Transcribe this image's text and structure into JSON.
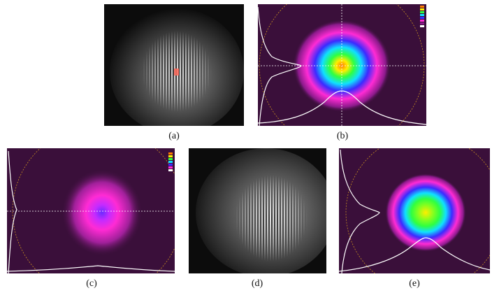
{
  "captions": {
    "a": "(a)",
    "b": "(b)",
    "c": "(c)",
    "d": "(d)",
    "e": "(e)"
  },
  "panels": {
    "a": {
      "kind": "fringe-photo",
      "background": "#0c0c0c"
    },
    "b": {
      "kind": "beam-profile",
      "background": "#3a0f3a"
    },
    "c": {
      "kind": "beam-profile",
      "background": "#3a0f3a"
    },
    "d": {
      "kind": "fringe-photo",
      "background": "#0c0c0c"
    },
    "e": {
      "kind": "beam-profile",
      "background": "#3a0f3a"
    }
  },
  "colors": {
    "beam_background": "#3a0f3a",
    "beam_magenta": "#ff2bd4",
    "beam_blue": "#3b2bff",
    "beam_cyan": "#10e0ff",
    "beam_green": "#30ff40",
    "beam_yellow": "#ffee00",
    "beam_orange": "#ff7a00",
    "photo_background": "#0c0c0c",
    "profile_trace": "#ffffff",
    "aperture_circle": "#c89020"
  }
}
